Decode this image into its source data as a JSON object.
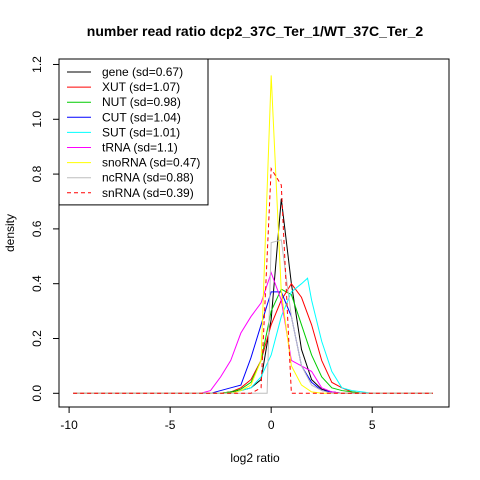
{
  "chart_data": {
    "type": "line",
    "title": "number read ratio dcp2_37C_Ter_1/WT_37C_Ter_2",
    "xlabel": "log2 ratio",
    "ylabel": "density",
    "xlim": [
      -10.5,
      8.8
    ],
    "ylim": [
      -0.05,
      1.22
    ],
    "xticks": [
      -10,
      -5,
      0,
      5
    ],
    "yticks": [
      0.0,
      0.2,
      0.4,
      0.6,
      0.8,
      1.0,
      1.2
    ],
    "grid": false,
    "legend_position": "top-left",
    "series": [
      {
        "name": "gene (sd=0.67)",
        "color": "#000000",
        "dash": false,
        "x": [
          -9.8,
          -3.5,
          -3.0,
          -2.5,
          -2.0,
          -1.5,
          -1.0,
          -0.5,
          0.0,
          0.5,
          1.0,
          1.5,
          2.0,
          2.5,
          3.0,
          3.5,
          4.0,
          4.5,
          8.0
        ],
        "y": [
          0,
          0,
          0,
          0,
          0.005,
          0.01,
          0.02,
          0.05,
          0.27,
          0.71,
          0.4,
          0.16,
          0.05,
          0.015,
          0.005,
          0,
          0,
          0,
          0
        ]
      },
      {
        "name": "XUT (sd=1.07)",
        "color": "#ff0000",
        "dash": false,
        "x": [
          -9.8,
          -3.0,
          -2.5,
          -2.0,
          -1.5,
          -1.0,
          -0.5,
          0.0,
          0.5,
          1.0,
          1.5,
          2.0,
          2.5,
          3.0,
          3.5,
          4.0,
          4.5,
          8.0
        ],
        "y": [
          0,
          0,
          0,
          0.005,
          0.02,
          0.05,
          0.12,
          0.25,
          0.34,
          0.4,
          0.35,
          0.25,
          0.12,
          0.04,
          0.02,
          0.005,
          0,
          0
        ]
      },
      {
        "name": "NUT (sd=0.98)",
        "color": "#00cc00",
        "dash": false,
        "x": [
          -9.8,
          -3.0,
          -2.5,
          -2.0,
          -1.5,
          -1.0,
          -0.5,
          0.0,
          0.5,
          1.0,
          1.5,
          2.0,
          2.5,
          3.0,
          3.5,
          4.0,
          4.5,
          8.0
        ],
        "y": [
          0,
          0,
          0,
          0.005,
          0.015,
          0.04,
          0.12,
          0.3,
          0.38,
          0.36,
          0.25,
          0.14,
          0.06,
          0.02,
          0.01,
          0.005,
          0,
          0
        ]
      },
      {
        "name": "CUT (sd=1.04)",
        "color": "#0000ff",
        "dash": false,
        "x": [
          -9.8,
          -3.0,
          -2.5,
          -2.0,
          -1.5,
          -1.0,
          -0.5,
          0.0,
          0.5,
          1.0,
          1.5,
          2.0,
          2.5,
          3.0,
          3.5,
          4.0,
          8.0
        ],
        "y": [
          0,
          0,
          0.01,
          0.02,
          0.03,
          0.13,
          0.25,
          0.37,
          0.37,
          0.28,
          0.1,
          0.04,
          0.01,
          0.005,
          0,
          0,
          0
        ]
      },
      {
        "name": "SUT (sd=1.01)",
        "color": "#00ffff",
        "dash": false,
        "x": [
          -9.8,
          -3.0,
          -2.5,
          -2.0,
          -1.5,
          -1.0,
          -0.5,
          0.0,
          0.5,
          1.0,
          1.5,
          1.8,
          2.0,
          2.5,
          3.0,
          3.5,
          4.0,
          4.5,
          5.0,
          8.0
        ],
        "y": [
          0,
          0,
          0,
          0,
          0.01,
          0.02,
          0.06,
          0.14,
          0.28,
          0.37,
          0.4,
          0.42,
          0.34,
          0.19,
          0.08,
          0.02,
          0.01,
          0.005,
          0,
          0
        ]
      },
      {
        "name": "tRNA (sd=1.1)",
        "color": "#ff00ff",
        "dash": false,
        "x": [
          -9.8,
          -4.0,
          -3.5,
          -3.0,
          -2.5,
          -2.0,
          -1.5,
          -1.0,
          -0.5,
          0.0,
          0.5,
          1.0,
          1.5,
          2.0,
          2.5,
          3.0,
          3.5,
          4.0,
          8.0
        ],
        "y": [
          0,
          0,
          0,
          0.01,
          0.06,
          0.12,
          0.22,
          0.28,
          0.33,
          0.44,
          0.34,
          0.12,
          0.1,
          0.08,
          0.02,
          0.005,
          0,
          0,
          0
        ]
      },
      {
        "name": "snoRNA (sd=0.47)",
        "color": "#ffff00",
        "dash": false,
        "x": [
          -9.8,
          -2.0,
          -1.5,
          -1.0,
          -0.5,
          0.0,
          0.5,
          1.0,
          1.5,
          2.0,
          2.5,
          8.0
        ],
        "y": [
          0,
          0,
          0.01,
          0.03,
          0.12,
          1.16,
          0.37,
          0.1,
          0.03,
          0.005,
          0,
          0
        ]
      },
      {
        "name": "ncRNA (sd=0.88)",
        "color": "#bebebe",
        "dash": false,
        "x": [
          -9.8,
          -1.0,
          -0.5,
          -0.2,
          0.0,
          0.5,
          1.0,
          1.5,
          2.0,
          2.5,
          3.0,
          8.0
        ],
        "y": [
          0,
          0,
          0,
          0.0,
          0.55,
          0.56,
          0.28,
          0.1,
          0.03,
          0.01,
          0,
          0
        ]
      },
      {
        "name": "snRNA (sd=0.39)",
        "color": "#ff0000",
        "dash": true,
        "x": [
          -9.8,
          -1.0,
          -0.5,
          0.0,
          0.5,
          0.8,
          1.0,
          8.0
        ],
        "y": [
          0,
          0,
          0.02,
          0.82,
          0.76,
          0.3,
          0,
          0
        ]
      }
    ]
  }
}
